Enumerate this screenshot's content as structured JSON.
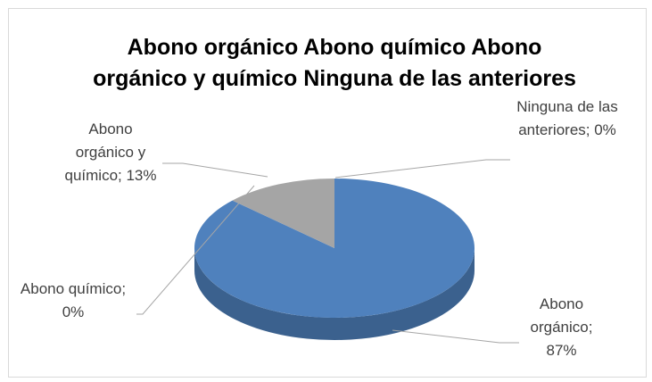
{
  "chart_data": {
    "type": "pie3d",
    "title": "Abono orgánico Abono químico Abono orgánico y químico Ninguna de las anteriores",
    "values": [
      87,
      0,
      13,
      0
    ],
    "value_labels": [
      "Abono orgánico; 87%",
      "Abono químico; 0%",
      "Abono orgánico y químico; 13%",
      "Ninguna de las anteriores; 0%"
    ],
    "colors": [
      "#4f81bd",
      "#c0504d",
      "#a5a5a5",
      "#9bbb59"
    ]
  }
}
